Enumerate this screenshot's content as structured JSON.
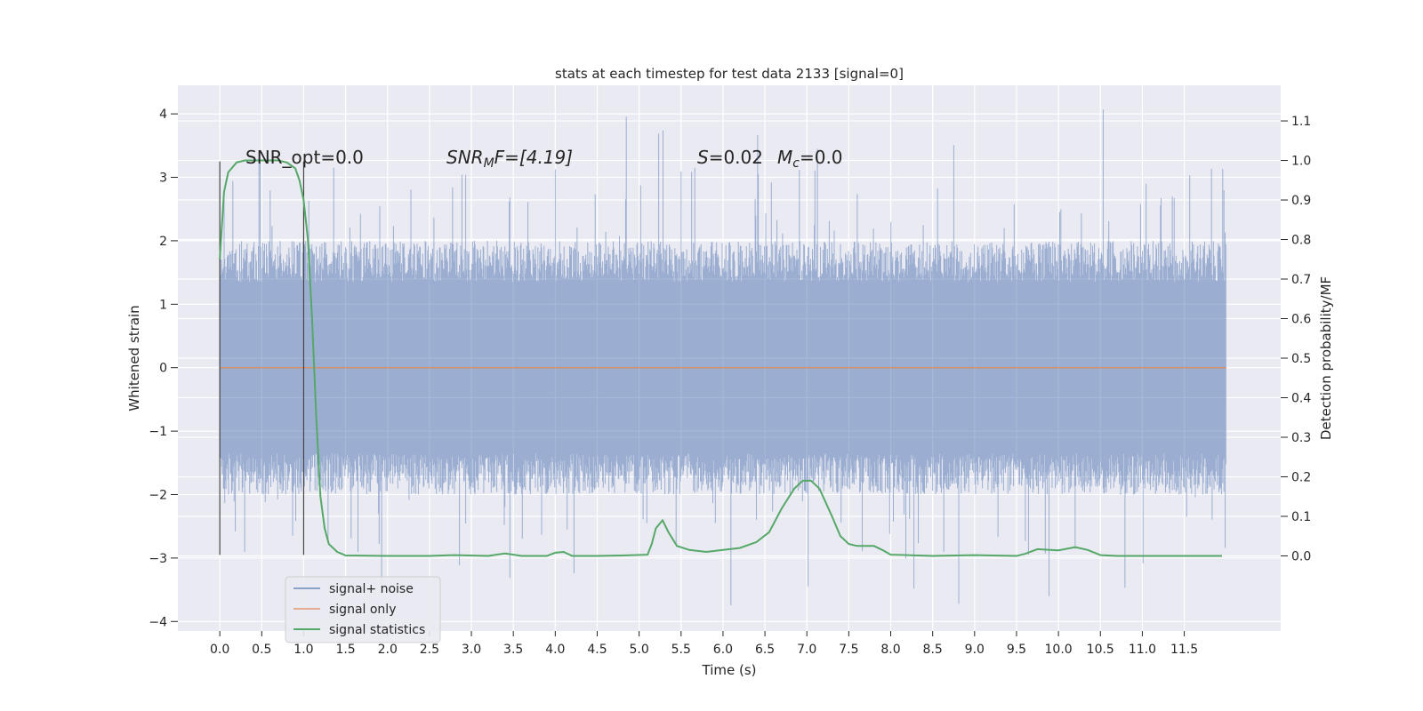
{
  "chart_data": {
    "type": "line",
    "title": "stats at each timestep for test data 2133 [signal=0]",
    "xlabel": "Time (s)",
    "ylabel": "Whitened strain",
    "y2label": "Detection probability/MF",
    "xlim": [
      -0.5,
      12.65
    ],
    "ylim": [
      -4.15,
      4.45
    ],
    "y2lim": [
      -0.19,
      1.19
    ],
    "x_ticks": [
      0.0,
      0.5,
      1.0,
      1.5,
      2.0,
      2.5,
      3.0,
      3.5,
      4.0,
      4.5,
      5.0,
      5.5,
      6.0,
      6.5,
      7.0,
      7.5,
      8.0,
      8.5,
      9.0,
      9.5,
      10.0,
      10.5,
      11.0,
      11.5
    ],
    "x_tick_labels": [
      "0.0",
      "0.5",
      "1.0",
      "1.5",
      "2.0",
      "2.5",
      "3.0",
      "3.5",
      "4.0",
      "4.5",
      "5.0",
      "5.5",
      "6.0",
      "6.5",
      "7.0",
      "7.5",
      "8.0",
      "8.5",
      "9.0",
      "9.5",
      "10.0",
      "10.5",
      "11.0",
      "11.5"
    ],
    "y_ticks": [
      4,
      3,
      2,
      1,
      0,
      -1,
      -2,
      -3,
      -4
    ],
    "y_tick_labels": [
      "4",
      "3",
      "2",
      "1",
      "0",
      "−1",
      "−2",
      "−3",
      "−4"
    ],
    "y2_ticks": [
      1.1,
      1.0,
      0.9,
      0.8,
      0.7,
      0.6,
      0.5,
      0.4,
      0.3,
      0.2,
      0.1,
      0.0
    ],
    "y2_tick_labels": [
      "1.1",
      "1.0",
      "0.9",
      "0.8",
      "0.7",
      "0.6",
      "0.5",
      "0.4",
      "0.3",
      "0.2",
      "0.1",
      "0.0"
    ],
    "grid": true,
    "legend_position": "lower-left",
    "annotations": {
      "snr_opt": "SNR_opt=0.0",
      "snr_mf_pre": "SNR",
      "snr_mf_sub": "M",
      "snr_mf_post": "F=[4.19]",
      "s_label": "S",
      "s_value": "=0.02",
      "mc_label": "M",
      "mc_sub": "c",
      "mc_value": "=0.0"
    },
    "series": [
      {
        "name": "signal+ noise",
        "color": "#4c72b0",
        "opacity": 0.5,
        "kind": "noise",
        "x_range": [
          0.0,
          12.0
        ],
        "envelope": {
          "dense_abs": 1.35,
          "typical_abs": 2.0,
          "peak_max": 4.1,
          "peak_min": -3.75
        }
      },
      {
        "name": "signal only",
        "color": "#dd8452",
        "values_const": 0.0,
        "x_range": [
          0.0,
          12.0
        ]
      },
      {
        "name": "signal statistics",
        "color": "#55a868",
        "axis": "right",
        "points": [
          [
            0.0,
            0.75
          ],
          [
            0.05,
            0.92
          ],
          [
            0.1,
            0.97
          ],
          [
            0.2,
            0.995
          ],
          [
            0.3,
            1.0
          ],
          [
            0.5,
            1.0
          ],
          [
            0.7,
            1.0
          ],
          [
            0.8,
            0.995
          ],
          [
            0.9,
            0.98
          ],
          [
            0.95,
            0.95
          ],
          [
            1.0,
            0.9
          ],
          [
            1.05,
            0.8
          ],
          [
            1.1,
            0.6
          ],
          [
            1.15,
            0.35
          ],
          [
            1.2,
            0.15
          ],
          [
            1.25,
            0.07
          ],
          [
            1.3,
            0.03
          ],
          [
            1.4,
            0.01
          ],
          [
            1.5,
            0.001
          ],
          [
            2.0,
            0.0
          ],
          [
            2.5,
            0.0
          ],
          [
            2.8,
            0.002
          ],
          [
            3.2,
            0.0
          ],
          [
            3.4,
            0.006
          ],
          [
            3.6,
            0.0
          ],
          [
            3.9,
            0.0
          ],
          [
            4.0,
            0.008
          ],
          [
            4.1,
            0.01
          ],
          [
            4.2,
            0.0
          ],
          [
            4.5,
            0.0
          ],
          [
            4.8,
            0.001
          ],
          [
            5.1,
            0.003
          ],
          [
            5.15,
            0.03
          ],
          [
            5.2,
            0.07
          ],
          [
            5.28,
            0.09
          ],
          [
            5.35,
            0.06
          ],
          [
            5.45,
            0.025
          ],
          [
            5.6,
            0.015
          ],
          [
            5.8,
            0.01
          ],
          [
            6.0,
            0.015
          ],
          [
            6.2,
            0.02
          ],
          [
            6.4,
            0.035
          ],
          [
            6.55,
            0.06
          ],
          [
            6.7,
            0.12
          ],
          [
            6.85,
            0.17
          ],
          [
            6.95,
            0.19
          ],
          [
            7.05,
            0.19
          ],
          [
            7.15,
            0.17
          ],
          [
            7.3,
            0.1
          ],
          [
            7.4,
            0.05
          ],
          [
            7.5,
            0.03
          ],
          [
            7.6,
            0.025
          ],
          [
            7.8,
            0.025
          ],
          [
            7.9,
            0.015
          ],
          [
            8.0,
            0.003
          ],
          [
            8.5,
            0.0
          ],
          [
            9.0,
            0.002
          ],
          [
            9.5,
            0.0
          ],
          [
            9.6,
            0.005
          ],
          [
            9.75,
            0.017
          ],
          [
            9.9,
            0.015
          ],
          [
            10.0,
            0.014
          ],
          [
            10.2,
            0.022
          ],
          [
            10.35,
            0.015
          ],
          [
            10.5,
            0.002
          ],
          [
            10.7,
            0.0
          ],
          [
            11.0,
            0.0
          ],
          [
            11.5,
            0.0
          ],
          [
            11.95,
            0.0
          ]
        ]
      }
    ],
    "markers": {
      "vertical_lines_x": [
        0.0,
        1.0
      ],
      "vertical_lines_yrange": [
        -2.95,
        3.25
      ],
      "color": "#444444"
    }
  }
}
